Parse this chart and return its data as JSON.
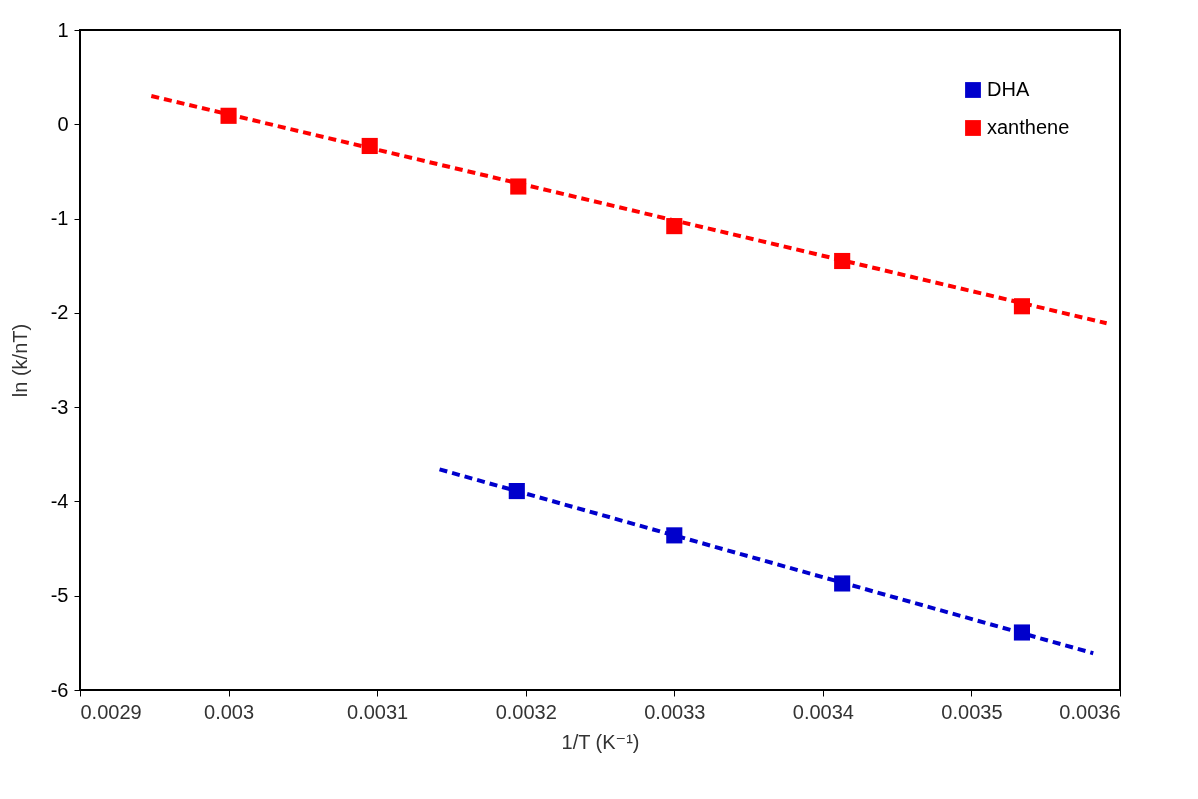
{
  "chart_data": {
    "type": "scatter",
    "xlabel": "1/T (K⁻¹)",
    "ylabel": "ln (k/nT)",
    "xlim": [
      0.0029,
      0.0036
    ],
    "xticks": [
      0.0029,
      0.003,
      0.0031,
      0.0032,
      0.0033,
      0.0034,
      0.0035,
      0.0036
    ],
    "ylim": [
      -6,
      1
    ],
    "yticks": [
      -6,
      -5,
      -4,
      -3,
      -2,
      -1,
      0,
      1
    ],
    "grid": false,
    "legend": "top right",
    "line_style": "dashed",
    "series": [
      {
        "name": "DHA",
        "color": "#0000cc",
        "marker": "square",
        "x": [
          0.003194,
          0.0033,
          0.003413,
          0.003534
        ],
        "values": [
          -3.89,
          -4.36,
          -4.87,
          -5.39
        ]
      },
      {
        "name": "xanthene",
        "color": "#ff0000",
        "marker": "square",
        "x": [
          0.003,
          0.003095,
          0.003195,
          0.0033,
          0.003413,
          0.003534
        ],
        "values": [
          0.09,
          -0.23,
          -0.66,
          -1.08,
          -1.45,
          -1.93
        ]
      },
      {
        "type": "line",
        "color": "#0000cc",
        "marker": "none",
        "x": [
          0.003142,
          0.003582
        ],
        "values": [
          -3.66,
          -5.61
        ]
      },
      {
        "type": "line",
        "color": "#ff0000",
        "marker": "none",
        "x": [
          0.002948,
          0.003591
        ],
        "values": [
          0.3,
          -2.11
        ]
      }
    ]
  }
}
